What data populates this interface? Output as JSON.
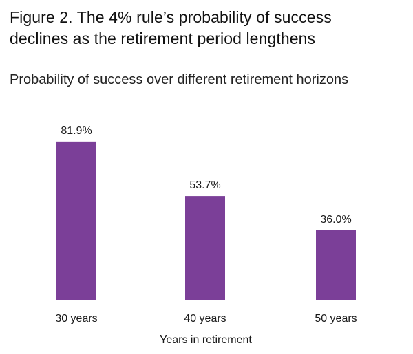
{
  "figure": {
    "title_line1": "Figure 2. The 4% rule’s probability of success",
    "title_line2": "declines as the retirement period lengthens",
    "subtitle": "Probability of success over different retirement horizons"
  },
  "colors": {
    "bar": "#7b3f98",
    "axis": "#999999",
    "text": "#1a1a1a"
  },
  "chart_data": {
    "type": "bar",
    "title": "Figure 2. The 4% rule’s probability of success declines as the retirement period lengthens",
    "subtitle": "Probability of success over different retirement horizons",
    "categories": [
      "30 years",
      "40 years",
      "50 years"
    ],
    "values": [
      81.9,
      53.7,
      36.0
    ],
    "value_labels": [
      "81.9%",
      "53.7%",
      "36.0%"
    ],
    "xlabel": "Years in retirement",
    "ylabel": "",
    "ylim": [
      0,
      100
    ],
    "grid": false,
    "legend": "none"
  }
}
